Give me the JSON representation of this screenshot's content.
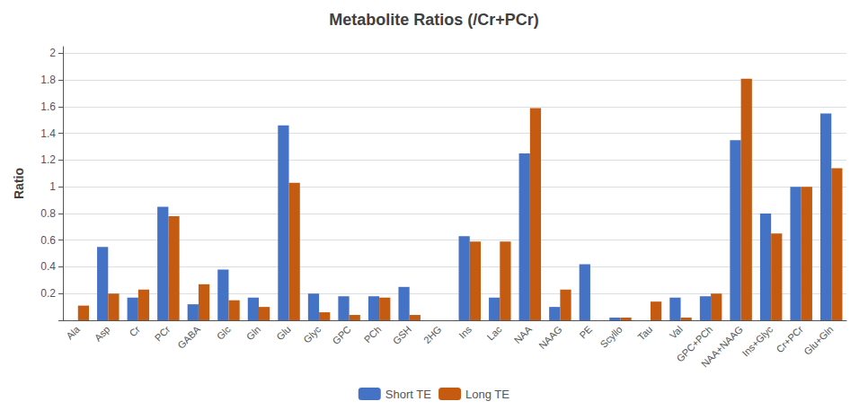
{
  "chart_data": {
    "type": "bar",
    "title": "Metabolite Ratios (/Cr+PCr)",
    "ylabel": "Ratio",
    "categories": [
      "Ala",
      "Asp",
      "Cr",
      "PCr",
      "GABA",
      "Glc",
      "Gln",
      "Glu",
      "Glyc",
      "GPC",
      "PCh",
      "GSH",
      "2HG",
      "Ins",
      "Lac",
      "NAA",
      "NAAG",
      "PE",
      "Scyllo",
      "Tau",
      "Val",
      "GPC+PCh",
      "NAA+NAAG",
      "Ins+Glyc",
      "Cr+PCr",
      "Glu+Gln"
    ],
    "series": [
      {
        "name": "Short TE",
        "color": "#4472C4",
        "values": [
          0.0,
          0.55,
          0.17,
          0.85,
          0.12,
          0.38,
          0.17,
          1.46,
          0.2,
          0.18,
          0.18,
          0.25,
          0.0,
          0.63,
          0.17,
          1.25,
          0.1,
          0.42,
          0.02,
          0.0,
          0.17,
          0.18,
          1.35,
          0.8,
          1.0,
          1.55
        ]
      },
      {
        "name": "Long TE",
        "color": "#C55A11",
        "values": [
          0.11,
          0.2,
          0.23,
          0.78,
          0.27,
          0.15,
          0.1,
          1.03,
          0.06,
          0.04,
          0.17,
          0.04,
          0.0,
          0.59,
          0.59,
          1.59,
          0.23,
          0.0,
          0.02,
          0.14,
          0.02,
          0.2,
          1.81,
          0.65,
          1.0,
          1.14
        ]
      }
    ],
    "ylim": [
      0,
      2.05
    ],
    "yticks": [
      {
        "value": 0,
        "label": ""
      },
      0.2,
      0.4,
      0.6,
      0.8,
      1,
      1.2,
      1.4,
      1.6,
      1.8,
      2
    ],
    "grid": true,
    "legend": "bottom"
  }
}
